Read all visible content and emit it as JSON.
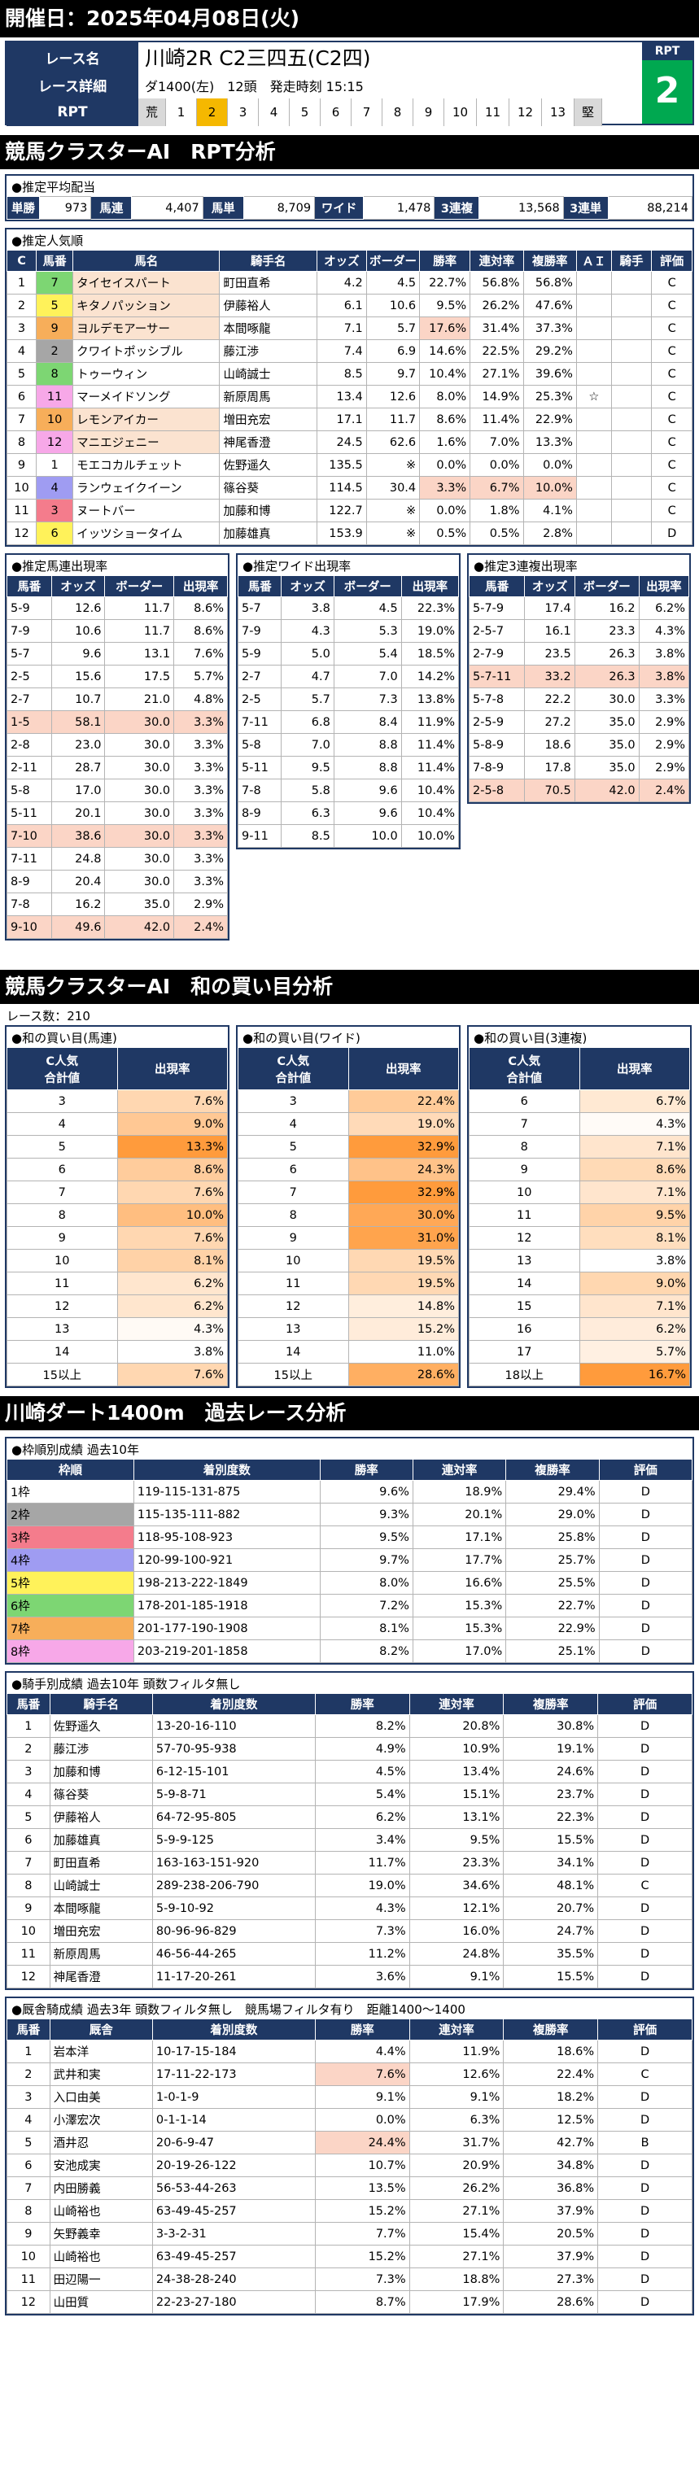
{
  "header": "開催日：2025年04月08日(火)",
  "race": {
    "name_label": "レース名",
    "name": "川崎2R C2三四五(C2四)",
    "detail_label": "レース詳細",
    "detail": "ダ1400(左)　12頭　発走時刻 15:15",
    "rpt_label": "RPT",
    "rpt_scale": [
      "荒",
      "1",
      "2",
      "3",
      "4",
      "5",
      "6",
      "7",
      "8",
      "9",
      "10",
      "11",
      "12",
      "13",
      "堅"
    ],
    "rpt_selected": 2,
    "rpt_box_label": "RPT",
    "rpt_value": "2"
  },
  "sec1_title": "競馬クラスターAI　RPT分析",
  "avg": {
    "title": "●推定平均配当",
    "items": [
      [
        "単勝",
        "973"
      ],
      [
        "馬連",
        "4,407"
      ],
      [
        "馬単",
        "8,709"
      ],
      [
        "ワイド",
        "1,478"
      ],
      [
        "3連複",
        "13,568"
      ],
      [
        "3連単",
        "88,214"
      ]
    ]
  },
  "pop": {
    "title": "●推定人気順",
    "headers": [
      "C",
      "馬番",
      "馬名",
      "騎手名",
      "オッズ",
      "ボーダー",
      "勝率",
      "連対率",
      "複勝率",
      "ＡＩ",
      "騎手",
      "評価"
    ],
    "rows": [
      [
        "1",
        "7",
        "タイセイスパート",
        "町田直希",
        "4.2",
        "4.5",
        "22.7%",
        "56.8%",
        "56.8%",
        "",
        "",
        "C"
      ],
      [
        "2",
        "5",
        "キタノパッション",
        "伊藤裕人",
        "6.1",
        "10.6",
        "9.5%",
        "26.2%",
        "47.6%",
        "",
        "",
        "C"
      ],
      [
        "3",
        "9",
        "ヨルデモアーサー",
        "本間啄龍",
        "7.1",
        "5.7",
        "17.6%",
        "31.4%",
        "37.3%",
        "",
        "",
        "C"
      ],
      [
        "4",
        "2",
        "クワイトポッシブル",
        "藤江渉",
        "7.4",
        "6.9",
        "14.6%",
        "22.5%",
        "29.2%",
        "",
        "",
        "C"
      ],
      [
        "5",
        "8",
        "トゥーウィン",
        "山崎誠士",
        "8.5",
        "9.7",
        "10.4%",
        "27.1%",
        "39.6%",
        "",
        "",
        "C"
      ],
      [
        "6",
        "11",
        "マーメイドソング",
        "新原周馬",
        "13.4",
        "12.6",
        "8.0%",
        "14.9%",
        "25.3%",
        "☆",
        "",
        "C"
      ],
      [
        "7",
        "10",
        "レモンアイカー",
        "増田充宏",
        "17.1",
        "11.7",
        "8.6%",
        "11.4%",
        "22.9%",
        "",
        "",
        "C"
      ],
      [
        "8",
        "12",
        "マニエジェニー",
        "神尾香澄",
        "24.5",
        "62.6",
        "1.6%",
        "7.0%",
        "13.3%",
        "",
        "",
        "C"
      ],
      [
        "9",
        "1",
        "モエコカルチェット",
        "佐野遥久",
        "135.5",
        "※",
        "0.0%",
        "0.0%",
        "0.0%",
        "",
        "",
        "C"
      ],
      [
        "10",
        "4",
        "ランウェイクイーン",
        "篠谷葵",
        "114.5",
        "30.4",
        "3.3%",
        "6.7%",
        "10.0%",
        "",
        "",
        "C"
      ],
      [
        "11",
        "3",
        "ヌートバー",
        "加藤和博",
        "122.7",
        "※",
        "0.0%",
        "1.8%",
        "4.1%",
        "",
        "",
        "C"
      ],
      [
        "12",
        "6",
        "イッツショータイム",
        "加藤雄真",
        "153.9",
        "※",
        "0.5%",
        "0.5%",
        "2.8%",
        "",
        "",
        "D"
      ]
    ]
  },
  "umaren": {
    "title": "●推定馬連出現率",
    "headers": [
      "馬番",
      "オッズ",
      "ボーダー",
      "出現率"
    ],
    "rows": [
      [
        "5-9",
        "12.6",
        "11.7",
        "8.6%"
      ],
      [
        "7-9",
        "10.6",
        "11.7",
        "8.6%"
      ],
      [
        "5-7",
        "9.6",
        "13.1",
        "7.6%"
      ],
      [
        "2-5",
        "15.6",
        "17.5",
        "5.7%"
      ],
      [
        "2-7",
        "10.7",
        "21.0",
        "4.8%"
      ],
      [
        "1-5",
        "58.1",
        "30.0",
        "3.3%"
      ],
      [
        "2-8",
        "23.0",
        "30.0",
        "3.3%"
      ],
      [
        "2-11",
        "28.7",
        "30.0",
        "3.3%"
      ],
      [
        "5-8",
        "17.0",
        "30.0",
        "3.3%"
      ],
      [
        "5-11",
        "20.1",
        "30.0",
        "3.3%"
      ],
      [
        "7-10",
        "38.6",
        "30.0",
        "3.3%"
      ],
      [
        "7-11",
        "24.8",
        "30.0",
        "3.3%"
      ],
      [
        "8-9",
        "20.4",
        "30.0",
        "3.3%"
      ],
      [
        "7-8",
        "16.2",
        "35.0",
        "2.9%"
      ],
      [
        "9-10",
        "49.6",
        "42.0",
        "2.4%"
      ]
    ]
  },
  "wide": {
    "title": "●推定ワイド出現率",
    "headers": [
      "馬番",
      "オッズ",
      "ボーダー",
      "出現率"
    ],
    "rows": [
      [
        "5-7",
        "3.8",
        "4.5",
        "22.3%"
      ],
      [
        "7-9",
        "4.3",
        "5.3",
        "19.0%"
      ],
      [
        "5-9",
        "5.0",
        "5.4",
        "18.5%"
      ],
      [
        "2-7",
        "4.7",
        "7.0",
        "14.2%"
      ],
      [
        "2-5",
        "5.7",
        "7.3",
        "13.8%"
      ],
      [
        "7-11",
        "6.8",
        "8.4",
        "11.9%"
      ],
      [
        "5-8",
        "7.0",
        "8.8",
        "11.4%"
      ],
      [
        "5-11",
        "9.5",
        "8.8",
        "11.4%"
      ],
      [
        "7-8",
        "5.8",
        "9.6",
        "10.4%"
      ],
      [
        "8-9",
        "6.3",
        "9.6",
        "10.4%"
      ],
      [
        "9-11",
        "8.5",
        "10.0",
        "10.0%"
      ]
    ]
  },
  "trio": {
    "title": "●推定3連複出現率",
    "headers": [
      "馬番",
      "オッズ",
      "ボーダー",
      "出現率"
    ],
    "rows": [
      [
        "5-7-9",
        "17.4",
        "16.2",
        "6.2%"
      ],
      [
        "2-5-7",
        "16.1",
        "23.3",
        "4.3%"
      ],
      [
        "2-7-9",
        "23.5",
        "26.3",
        "3.8%"
      ],
      [
        "5-7-11",
        "33.2",
        "26.3",
        "3.8%"
      ],
      [
        "5-7-8",
        "22.2",
        "30.0",
        "3.3%"
      ],
      [
        "2-5-9",
        "27.2",
        "35.0",
        "2.9%"
      ],
      [
        "5-8-9",
        "18.6",
        "35.0",
        "2.9%"
      ],
      [
        "7-8-9",
        "17.8",
        "35.0",
        "2.9%"
      ],
      [
        "2-5-8",
        "70.5",
        "42.0",
        "2.4%"
      ]
    ]
  },
  "sec2_title": "競馬クラスターAI　和の買い目分析",
  "race_count": "レース数：210",
  "wa": [
    {
      "title": "●和の買い目(馬連)",
      "h1": "C人気\n合計値",
      "h2": "出現率",
      "rows": [
        [
          "3",
          "7.6%"
        ],
        [
          "4",
          "9.0%"
        ],
        [
          "5",
          "13.3%"
        ],
        [
          "6",
          "8.6%"
        ],
        [
          "7",
          "7.6%"
        ],
        [
          "8",
          "10.0%"
        ],
        [
          "9",
          "7.6%"
        ],
        [
          "10",
          "8.1%"
        ],
        [
          "11",
          "6.2%"
        ],
        [
          "12",
          "6.2%"
        ],
        [
          "13",
          "4.3%"
        ],
        [
          "14",
          "3.8%"
        ],
        [
          "15以上",
          "7.6%"
        ]
      ]
    },
    {
      "title": "●和の買い目(ワイド)",
      "h1": "C人気\n合計値",
      "h2": "出現率",
      "rows": [
        [
          "3",
          "22.4%"
        ],
        [
          "4",
          "19.0%"
        ],
        [
          "5",
          "32.9%"
        ],
        [
          "6",
          "24.3%"
        ],
        [
          "7",
          "32.9%"
        ],
        [
          "8",
          "30.0%"
        ],
        [
          "9",
          "31.0%"
        ],
        [
          "10",
          "19.5%"
        ],
        [
          "11",
          "19.5%"
        ],
        [
          "12",
          "14.8%"
        ],
        [
          "13",
          "15.2%"
        ],
        [
          "14",
          "11.0%"
        ],
        [
          "15以上",
          "28.6%"
        ]
      ]
    },
    {
      "title": "●和の買い目(3連複)",
      "h1": "C人気\n合計値",
      "h2": "出現率",
      "rows": [
        [
          "6",
          "6.7%"
        ],
        [
          "7",
          "4.3%"
        ],
        [
          "8",
          "7.1%"
        ],
        [
          "9",
          "8.6%"
        ],
        [
          "10",
          "7.1%"
        ],
        [
          "11",
          "9.5%"
        ],
        [
          "12",
          "8.1%"
        ],
        [
          "13",
          "3.8%"
        ],
        [
          "14",
          "9.0%"
        ],
        [
          "15",
          "7.1%"
        ],
        [
          "16",
          "6.2%"
        ],
        [
          "17",
          "5.7%"
        ],
        [
          "18以上",
          "16.7%"
        ]
      ]
    }
  ],
  "sec3_title": "川崎ダート1400m　過去レース分析",
  "waku": {
    "title": "●枠順別成績 過去10年",
    "headers": [
      "枠順",
      "着別度数",
      "勝率",
      "連対率",
      "複勝率",
      "評価"
    ],
    "rows": [
      [
        "1枠",
        "119-115-131-875",
        "9.6%",
        "18.9%",
        "29.4%",
        "D"
      ],
      [
        "2枠",
        "115-135-111-882",
        "9.3%",
        "20.1%",
        "29.0%",
        "D"
      ],
      [
        "3枠",
        "118-95-108-923",
        "9.5%",
        "17.1%",
        "25.8%",
        "D"
      ],
      [
        "4枠",
        "120-99-100-921",
        "9.7%",
        "17.7%",
        "25.7%",
        "D"
      ],
      [
        "5枠",
        "198-213-222-1849",
        "8.0%",
        "16.6%",
        "25.5%",
        "D"
      ],
      [
        "6枠",
        "178-201-185-1918",
        "7.2%",
        "15.3%",
        "22.7%",
        "D"
      ],
      [
        "7枠",
        "201-177-190-1908",
        "8.1%",
        "15.3%",
        "22.9%",
        "D"
      ],
      [
        "8枠",
        "203-219-201-1858",
        "8.2%",
        "17.0%",
        "25.1%",
        "D"
      ]
    ]
  },
  "jockey": {
    "title": "●騎手別成績 過去10年 頭数フィルタ無し",
    "headers": [
      "馬番",
      "騎手名",
      "着別度数",
      "勝率",
      "連対率",
      "複勝率",
      "評価"
    ],
    "rows": [
      [
        "1",
        "佐野遥久",
        "13-20-16-110",
        "8.2%",
        "20.8%",
        "30.8%",
        "D"
      ],
      [
        "2",
        "藤江渉",
        "57-70-95-938",
        "4.9%",
        "10.9%",
        "19.1%",
        "D"
      ],
      [
        "3",
        "加藤和博",
        "6-12-15-101",
        "4.5%",
        "13.4%",
        "24.6%",
        "D"
      ],
      [
        "4",
        "篠谷葵",
        "5-9-8-71",
        "5.4%",
        "15.1%",
        "23.7%",
        "D"
      ],
      [
        "5",
        "伊藤裕人",
        "64-72-95-805",
        "6.2%",
        "13.1%",
        "22.3%",
        "D"
      ],
      [
        "6",
        "加藤雄真",
        "5-9-9-125",
        "3.4%",
        "9.5%",
        "15.5%",
        "D"
      ],
      [
        "7",
        "町田直希",
        "163-163-151-920",
        "11.7%",
        "23.3%",
        "34.1%",
        "D"
      ],
      [
        "8",
        "山崎誠士",
        "289-238-206-790",
        "19.0%",
        "34.6%",
        "48.1%",
        "C"
      ],
      [
        "9",
        "本間啄龍",
        "5-9-10-92",
        "4.3%",
        "12.1%",
        "20.7%",
        "D"
      ],
      [
        "10",
        "増田充宏",
        "80-96-96-829",
        "7.3%",
        "16.0%",
        "24.7%",
        "D"
      ],
      [
        "11",
        "新原周馬",
        "46-56-44-265",
        "11.2%",
        "24.8%",
        "35.5%",
        "D"
      ],
      [
        "12",
        "神尾香澄",
        "11-17-20-261",
        "3.6%",
        "9.1%",
        "15.5%",
        "D"
      ]
    ]
  },
  "owner": {
    "title": "●厩舎騎成績 過去3年 頭数フィルタ無し　競馬場フィルタ有り　距離1400～1400",
    "headers": [
      "馬番",
      "厩舎",
      "着別度数",
      "勝率",
      "連対率",
      "複勝率",
      "評価"
    ],
    "rows": [
      [
        "1",
        "岩本洋",
        "10-17-15-184",
        "4.4%",
        "11.9%",
        "18.6%",
        "D"
      ],
      [
        "2",
        "武井和実",
        "17-11-22-173",
        "7.6%",
        "12.6%",
        "22.4%",
        "C"
      ],
      [
        "3",
        "入口由美",
        "1-0-1-9",
        "9.1%",
        "9.1%",
        "18.2%",
        "D"
      ],
      [
        "4",
        "小澤宏次",
        "0-1-1-14",
        "0.0%",
        "6.3%",
        "12.5%",
        "D"
      ],
      [
        "5",
        "酒井忍",
        "20-6-9-47",
        "24.4%",
        "31.7%",
        "42.7%",
        "B"
      ],
      [
        "6",
        "安池成実",
        "20-19-26-122",
        "10.7%",
        "20.9%",
        "34.8%",
        "D"
      ],
      [
        "7",
        "内田勝義",
        "56-53-44-263",
        "13.5%",
        "26.2%",
        "36.8%",
        "D"
      ],
      [
        "8",
        "山崎裕也",
        "63-49-45-257",
        "15.2%",
        "27.1%",
        "37.9%",
        "D"
      ],
      [
        "9",
        "矢野義幸",
        "3-3-2-31",
        "7.7%",
        "15.4%",
        "20.5%",
        "D"
      ],
      [
        "10",
        "山崎裕也",
        "63-49-45-257",
        "15.2%",
        "27.1%",
        "37.9%",
        "D"
      ],
      [
        "11",
        "田辺陽一",
        "24-38-28-240",
        "7.3%",
        "18.8%",
        "27.3%",
        "D"
      ],
      [
        "12",
        "山田質",
        "22-23-27-180",
        "8.7%",
        "17.9%",
        "28.6%",
        "D"
      ]
    ]
  },
  "colors": {
    "navy": "#1f3864",
    "rpt_green": "#00a850",
    "rpt_selected": "#f5b800"
  }
}
